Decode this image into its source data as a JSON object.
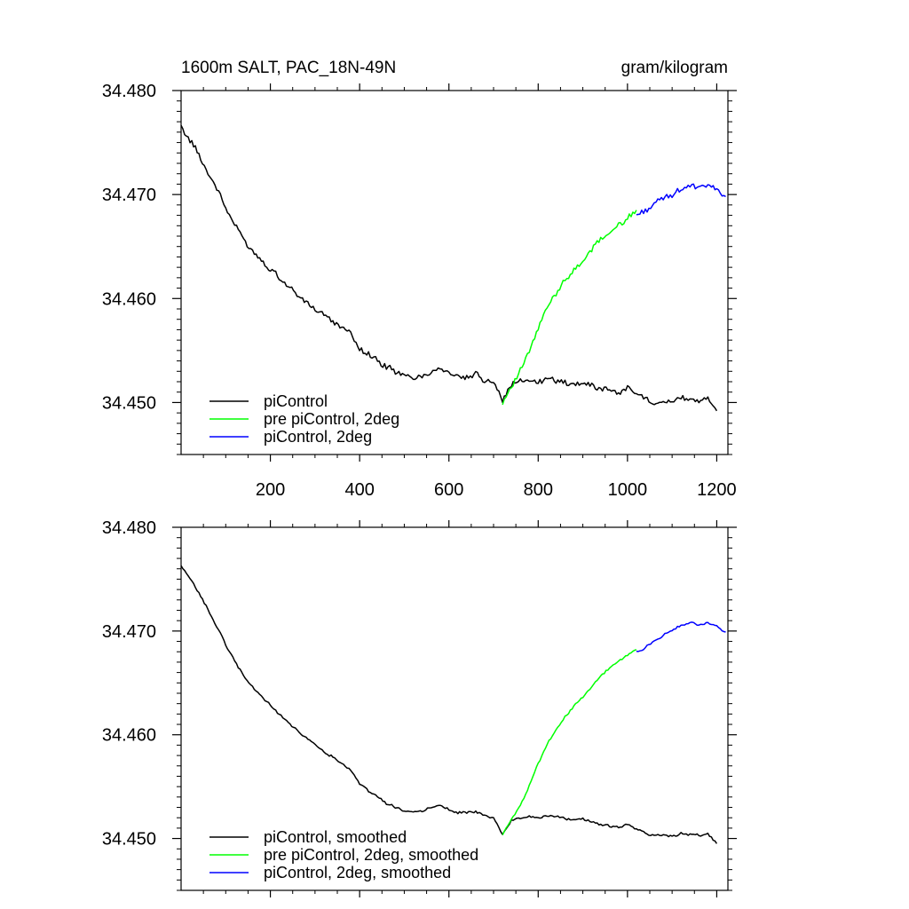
{
  "figure": {
    "title_left": "1600m SALT, PAC_18N-49N",
    "title_right": "gram/kilogram"
  },
  "colors": {
    "piControl": "#000000",
    "pre_piControl_2deg": "#00ff00",
    "piControl_2deg": "#0000ff",
    "axis": "#000000"
  },
  "chart_data": [
    {
      "type": "line",
      "title": "1600m SALT, PAC_18N-49N",
      "units": "gram/kilogram",
      "xlabel": "",
      "ylabel": "",
      "xlim": [
        0,
        1225
      ],
      "ylim": [
        34.445,
        34.48
      ],
      "xticks": [
        200,
        400,
        600,
        800,
        1000,
        1200
      ],
      "xtick_labels": [
        "200",
        "400",
        "600",
        "800",
        "1000",
        "1200"
      ],
      "yticks": [
        34.45,
        34.46,
        34.47,
        34.48
      ],
      "ytick_labels": [
        "34.450",
        "34.460",
        "34.470",
        "34.480"
      ],
      "legend_position": "bottom-left",
      "series": [
        {
          "name": "piControl",
          "color_key": "piControl",
          "x": [
            0,
            20,
            40,
            60,
            80,
            100,
            120,
            140,
            160,
            180,
            200,
            220,
            240,
            260,
            280,
            300,
            320,
            340,
            360,
            380,
            400,
            420,
            440,
            460,
            480,
            500,
            520,
            540,
            560,
            580,
            600,
            620,
            640,
            660,
            680,
            700,
            720,
            740,
            760,
            780,
            800,
            820,
            840,
            860,
            880,
            900,
            920,
            940,
            960,
            980,
            1000,
            1020,
            1040,
            1060,
            1080,
            1100,
            1120,
            1140,
            1160,
            1180,
            1200
          ],
          "y": [
            34.4765,
            34.4752,
            34.4738,
            34.4722,
            34.4705,
            34.4688,
            34.4672,
            34.4657,
            34.4646,
            34.4637,
            34.4628,
            34.462,
            34.4612,
            34.4604,
            34.4597,
            34.459,
            34.4584,
            34.4577,
            34.4572,
            34.4566,
            34.4552,
            34.4546,
            34.454,
            34.4534,
            34.453,
            34.4527,
            34.4524,
            34.4525,
            34.453,
            34.4533,
            34.4528,
            34.4524,
            34.4525,
            34.4527,
            34.4522,
            34.452,
            34.4503,
            34.4518,
            34.452,
            34.4522,
            34.452,
            34.4523,
            34.4521,
            34.4519,
            34.4517,
            34.452,
            34.4516,
            34.4513,
            34.4512,
            34.451,
            34.4514,
            34.4509,
            34.4504,
            34.4501,
            34.4502,
            34.45,
            34.4505,
            34.4503,
            34.4501,
            34.4506,
            34.4492
          ]
        },
        {
          "name": "pre piControl, 2deg",
          "color_key": "pre_piControl_2deg",
          "x": [
            720,
            740,
            760,
            780,
            800,
            820,
            840,
            860,
            880,
            900,
            920,
            940,
            960,
            980,
            1000,
            1020
          ],
          "y": [
            34.45,
            34.4515,
            34.453,
            34.455,
            34.4572,
            34.4592,
            34.4605,
            34.4618,
            34.4627,
            34.4636,
            34.4646,
            34.4657,
            34.4664,
            34.4671,
            34.4678,
            34.4685
          ]
        },
        {
          "name": "piControl, 2deg",
          "color_key": "piControl_2deg",
          "x": [
            1020,
            1040,
            1060,
            1080,
            1100,
            1120,
            1140,
            1160,
            1180,
            1200,
            1220
          ],
          "y": [
            34.468,
            34.4684,
            34.469,
            34.4696,
            34.47,
            34.4705,
            34.4708,
            34.4706,
            34.471,
            34.4704,
            34.4698
          ]
        }
      ]
    },
    {
      "type": "line",
      "title": "",
      "xlabel": "",
      "ylabel": "",
      "xlim": [
        0,
        1225
      ],
      "ylim": [
        34.445,
        34.48
      ],
      "xticks": [
        200,
        400,
        600,
        800,
        1000,
        1200
      ],
      "xtick_labels": [],
      "yticks": [
        34.45,
        34.46,
        34.47,
        34.48
      ],
      "ytick_labels": [
        "34.450",
        "34.460",
        "34.470",
        "34.480"
      ],
      "legend_position": "bottom-left",
      "series": [
        {
          "name": "piControl, smoothed",
          "color_key": "piControl",
          "x": [
            0,
            20,
            40,
            60,
            80,
            100,
            120,
            140,
            160,
            180,
            200,
            220,
            240,
            260,
            280,
            300,
            320,
            340,
            360,
            380,
            400,
            420,
            440,
            460,
            480,
            500,
            520,
            540,
            560,
            580,
            600,
            620,
            640,
            660,
            680,
            700,
            720,
            740,
            760,
            780,
            800,
            820,
            840,
            860,
            880,
            900,
            920,
            940,
            960,
            980,
            1000,
            1020,
            1040,
            1060,
            1080,
            1100,
            1120,
            1140,
            1160,
            1180,
            1200
          ],
          "y": [
            34.4762,
            34.475,
            34.4737,
            34.4721,
            34.4704,
            34.4687,
            34.4671,
            34.4657,
            34.4646,
            34.4637,
            34.4628,
            34.462,
            34.4612,
            34.4604,
            34.4597,
            34.459,
            34.4584,
            34.4578,
            34.4572,
            34.4566,
            34.4553,
            34.4546,
            34.454,
            34.4534,
            34.453,
            34.4527,
            34.4525,
            34.4526,
            34.453,
            34.4532,
            34.4528,
            34.4525,
            34.4525,
            34.4526,
            34.4522,
            34.4519,
            34.4504,
            34.4517,
            34.452,
            34.4521,
            34.452,
            34.4522,
            34.4521,
            34.4519,
            34.4518,
            34.4519,
            34.4516,
            34.4514,
            34.4512,
            34.4511,
            34.4513,
            34.451,
            34.4505,
            34.4503,
            34.4503,
            34.4502,
            34.4505,
            34.4504,
            34.4503,
            34.4505,
            34.4495
          ]
        },
        {
          "name": "pre piControl, 2deg, smoothed",
          "color_key": "pre_piControl_2deg",
          "x": [
            720,
            740,
            760,
            780,
            800,
            820,
            840,
            860,
            880,
            900,
            920,
            940,
            960,
            980,
            1000,
            1020
          ],
          "y": [
            34.4504,
            34.4518,
            34.4532,
            34.4551,
            34.4572,
            34.4591,
            34.4604,
            34.4617,
            34.4627,
            34.4636,
            34.4646,
            34.4656,
            34.4664,
            34.4671,
            34.4677,
            34.4682
          ]
        },
        {
          "name": "piControl, 2deg, smoothed",
          "color_key": "piControl_2deg",
          "x": [
            1020,
            1040,
            1060,
            1080,
            1100,
            1120,
            1140,
            1160,
            1180,
            1200,
            1220
          ],
          "y": [
            34.4679,
            34.4684,
            34.469,
            34.4696,
            34.4701,
            34.4705,
            34.4708,
            34.4706,
            34.4708,
            34.4704,
            34.4699
          ]
        }
      ]
    }
  ]
}
